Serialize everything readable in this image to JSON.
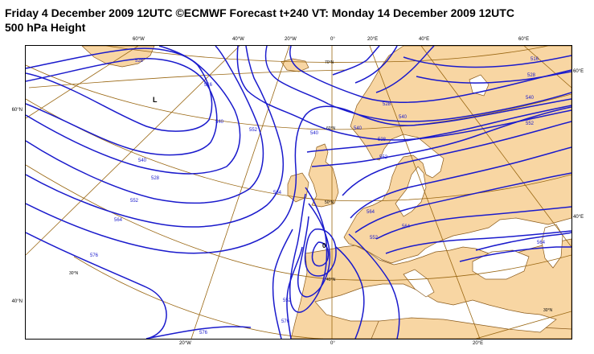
{
  "title": {
    "line1": "Friday 4 December 2009 12UTC ©ECMWF Forecast t+240 VT: Monday 14 December 2009 12UTC",
    "line2": "500 hPa Height"
  },
  "map": {
    "colors": {
      "land": "#f8d6a3",
      "sea": "#ffffff",
      "contour": "#1a1acc",
      "graticule": "#996611",
      "coast": "#8a5a1a"
    },
    "lon_top": [
      "60°W",
      "40°W",
      "20°W",
      "0°",
      "20°E",
      "40°E",
      "60°E"
    ],
    "lon_bottom": [
      "20°W",
      "0°",
      "20°E"
    ],
    "lat_left": [
      "60°N",
      "40°N"
    ],
    "lat_right": [
      "60°E",
      "40°E"
    ],
    "inner_lat": [
      "70°N",
      "60°N",
      "50°N",
      "40°N",
      "30°N",
      "30°N"
    ],
    "contour_labels": [
      "528",
      "516",
      "540",
      "528",
      "552",
      "540",
      "564",
      "576",
      "552",
      "564",
      "576",
      "552",
      "540",
      "528",
      "516",
      "528",
      "540",
      "552",
      "540",
      "552",
      "564",
      "564",
      "564",
      "576",
      "528",
      "552",
      "540"
    ],
    "centers": {
      "low": "L",
      "cutoff": "0"
    }
  }
}
